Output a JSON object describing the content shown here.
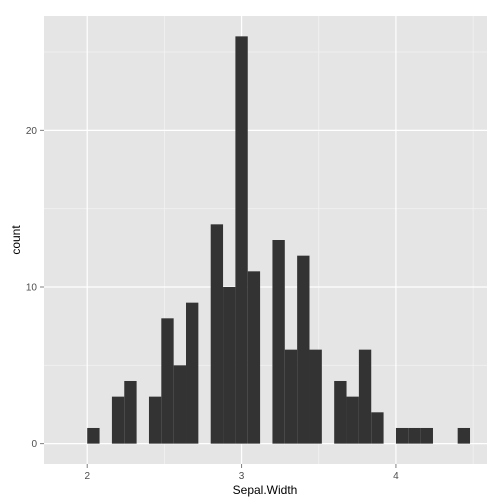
{
  "chart_data": {
    "type": "bar",
    "subtype": "histogram",
    "xlabel": "Sepal.Width",
    "ylabel": "count",
    "xlim": [
      1.72,
      4.59
    ],
    "ylim": [
      -1.3,
      27.3
    ],
    "x_ticks": [
      2,
      3,
      4
    ],
    "x_tick_labels": [
      "2",
      "3",
      "4"
    ],
    "y_ticks": [
      0,
      10,
      20
    ],
    "y_tick_labels": [
      "0",
      "10",
      "20"
    ],
    "grid": true,
    "legend": "none",
    "bin_width": 0.08,
    "bins": [
      {
        "x": 2.0,
        "count": 1
      },
      {
        "x": 2.08,
        "count": 0
      },
      {
        "x": 2.16,
        "count": 3
      },
      {
        "x": 2.24,
        "count": 4
      },
      {
        "x": 2.32,
        "count": 0
      },
      {
        "x": 2.4,
        "count": 3
      },
      {
        "x": 2.48,
        "count": 8
      },
      {
        "x": 2.56,
        "count": 5
      },
      {
        "x": 2.64,
        "count": 9
      },
      {
        "x": 2.72,
        "count": 0
      },
      {
        "x": 2.8,
        "count": 14
      },
      {
        "x": 2.88,
        "count": 10
      },
      {
        "x": 2.96,
        "count": 26
      },
      {
        "x": 3.04,
        "count": 11
      },
      {
        "x": 3.12,
        "count": 0
      },
      {
        "x": 3.2,
        "count": 13
      },
      {
        "x": 3.28,
        "count": 6
      },
      {
        "x": 3.36,
        "count": 12
      },
      {
        "x": 3.44,
        "count": 6
      },
      {
        "x": 3.52,
        "count": 0
      },
      {
        "x": 3.6,
        "count": 4
      },
      {
        "x": 3.68,
        "count": 3
      },
      {
        "x": 3.76,
        "count": 6
      },
      {
        "x": 3.84,
        "count": 2
      },
      {
        "x": 3.92,
        "count": 0
      },
      {
        "x": 4.0,
        "count": 1
      },
      {
        "x": 4.08,
        "count": 1
      },
      {
        "x": 4.16,
        "count": 1
      },
      {
        "x": 4.24,
        "count": 0
      },
      {
        "x": 4.32,
        "count": 0
      },
      {
        "x": 4.4,
        "count": 1
      }
    ],
    "colors": {
      "panel": "#e5e5e5",
      "grid_major": "#ffffff",
      "grid_minor": "#f2f2f2",
      "bar": "#333333",
      "tick_mark": "#7f7f7f"
    }
  }
}
